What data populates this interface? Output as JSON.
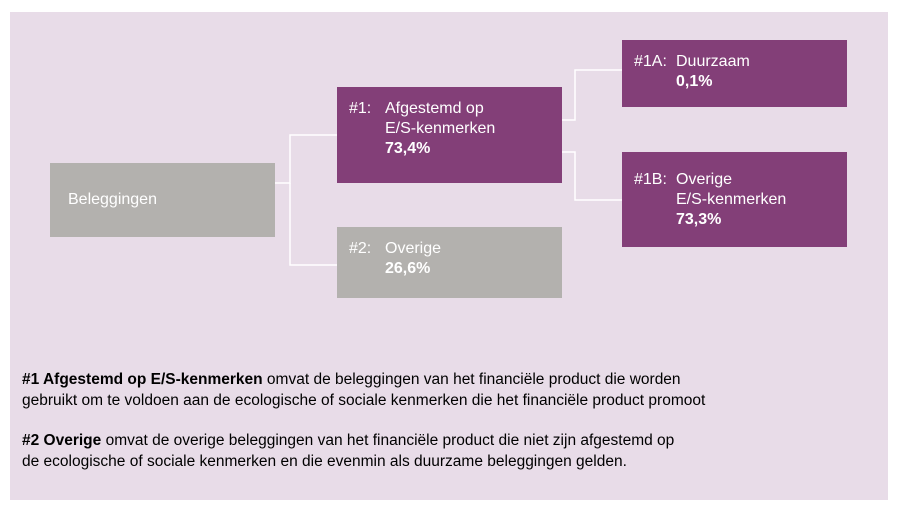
{
  "nodes": [
    {
      "label": "Beleggingen"
    },
    {
      "id": "#1:",
      "lines": [
        "Afgestemd op",
        "E/S-kenmerken"
      ],
      "value": "73,4%"
    },
    {
      "id": "#2:",
      "lines": [
        "Overige"
      ],
      "value": "26,6%"
    },
    {
      "id": "#1A:",
      "lines": [
        "Duurzaam"
      ],
      "value": "0,1%"
    },
    {
      "id": "#1B:",
      "lines": [
        "Overige",
        "E/S-kenmerken"
      ],
      "value": "73,3%"
    }
  ],
  "notes": [
    {
      "bold": "#1 Afgestemd op E/S-kenmerken",
      "line1": " omvat de beleggingen van het financiële product die worden",
      "line2": "gebruikt om te voldoen aan de ecologische of sociale kenmerken die het financiële product promoot"
    },
    {
      "bold": "#2 Overige",
      "line1": " omvat de overige beleggingen van het financiële product die niet zijn afgestemd op",
      "line2": "de ecologische of sociale kenmerken en die evenmin als duurzame beleggingen gelden."
    }
  ]
}
